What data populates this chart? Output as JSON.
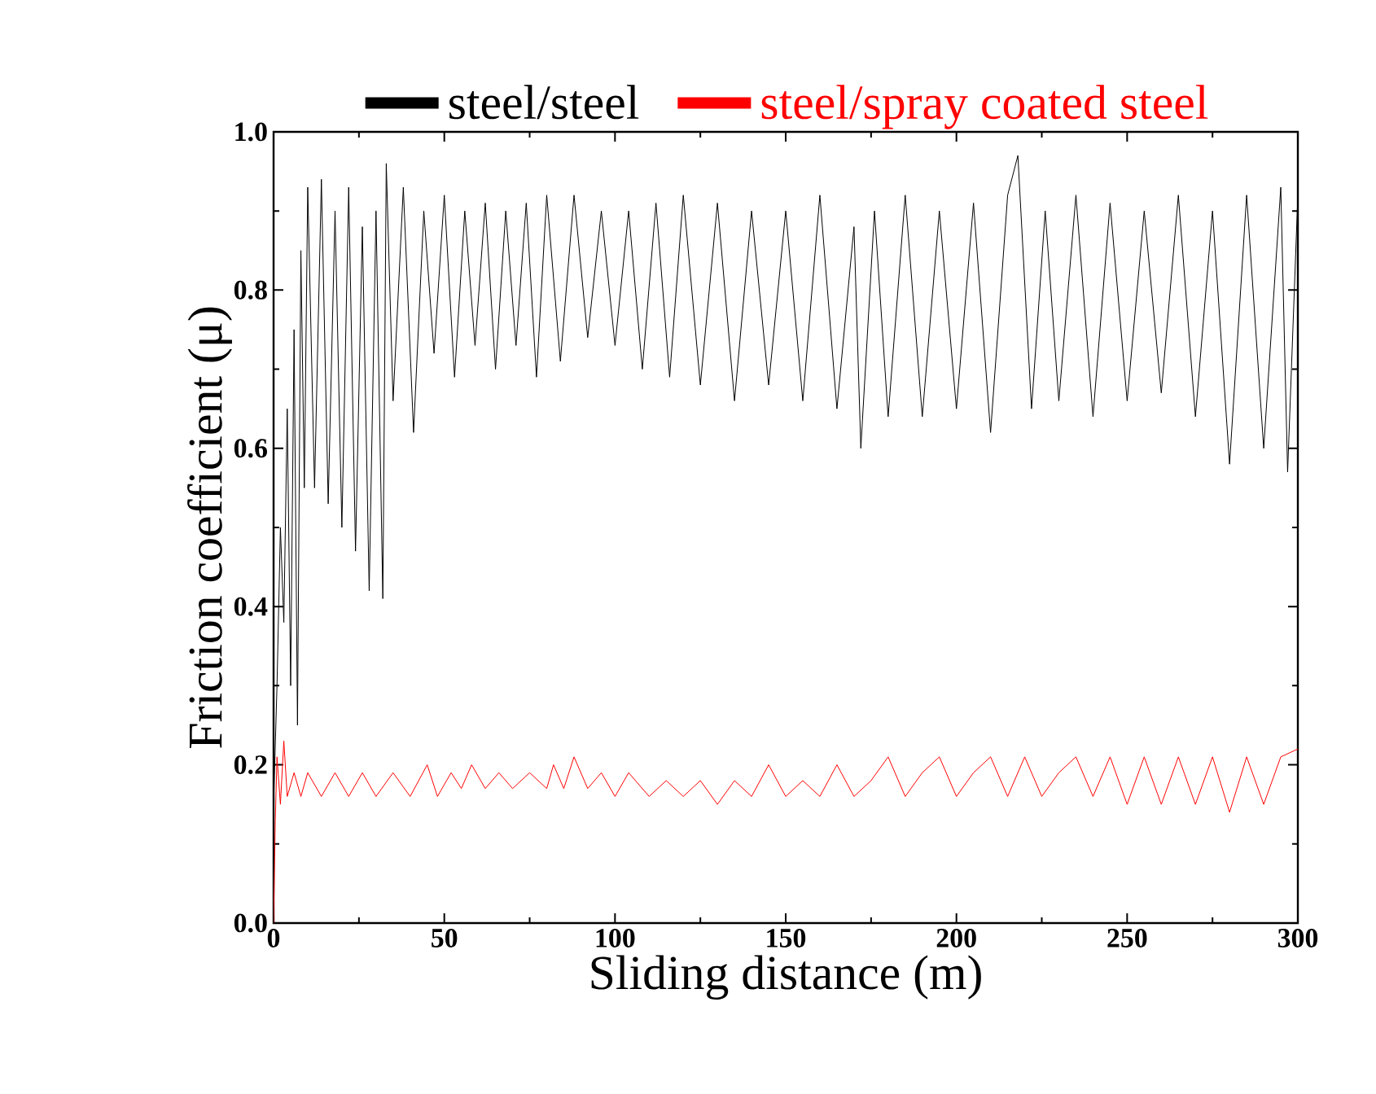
{
  "chart_data": {
    "type": "line",
    "xlabel": "Sliding distance (m)",
    "ylabel": "Friction coefficient (μ)",
    "legend": "top",
    "xlim": [
      0,
      300
    ],
    "ylim": [
      0,
      1.0
    ],
    "xticks": [
      0,
      50,
      100,
      150,
      200,
      250,
      300
    ],
    "yticks": [
      {
        "value": 0,
        "label": "0.0"
      },
      {
        "value": 0.2,
        "label": "0.2"
      },
      {
        "value": 0.4,
        "label": "0.4"
      },
      {
        "value": 0.6,
        "label": "0.6"
      },
      {
        "value": 0.8,
        "label": "0.8"
      },
      {
        "value": 1.0,
        "label": "1.0"
      }
    ],
    "series": [
      {
        "name": "steel/steel",
        "color": "#000000",
        "x": [
          0,
          1,
          2,
          3,
          4,
          5,
          6,
          7,
          8,
          9,
          10,
          12,
          14,
          16,
          18,
          20,
          22,
          24,
          26,
          28,
          30,
          32,
          33,
          35,
          38,
          41,
          44,
          47,
          50,
          53,
          56,
          59,
          62,
          65,
          68,
          71,
          74,
          77,
          80,
          84,
          88,
          92,
          96,
          100,
          104,
          108,
          112,
          116,
          120,
          125,
          130,
          135,
          140,
          145,
          150,
          155,
          160,
          165,
          170,
          172,
          176,
          180,
          185,
          190,
          195,
          200,
          205,
          210,
          215,
          218,
          222,
          226,
          230,
          235,
          240,
          245,
          250,
          255,
          260,
          265,
          270,
          275,
          280,
          285,
          290,
          295,
          297,
          300
        ],
        "values": [
          0.15,
          0.3,
          0.5,
          0.38,
          0.65,
          0.3,
          0.75,
          0.25,
          0.85,
          0.55,
          0.93,
          0.55,
          0.94,
          0.53,
          0.9,
          0.5,
          0.93,
          0.47,
          0.88,
          0.42,
          0.9,
          0.41,
          0.96,
          0.66,
          0.93,
          0.62,
          0.9,
          0.72,
          0.92,
          0.69,
          0.9,
          0.73,
          0.91,
          0.7,
          0.9,
          0.73,
          0.91,
          0.69,
          0.92,
          0.71,
          0.92,
          0.74,
          0.9,
          0.73,
          0.9,
          0.7,
          0.91,
          0.69,
          0.92,
          0.68,
          0.91,
          0.66,
          0.9,
          0.68,
          0.9,
          0.66,
          0.92,
          0.65,
          0.88,
          0.6,
          0.9,
          0.64,
          0.92,
          0.64,
          0.9,
          0.65,
          0.91,
          0.62,
          0.92,
          0.97,
          0.65,
          0.9,
          0.66,
          0.92,
          0.64,
          0.91,
          0.66,
          0.9,
          0.67,
          0.92,
          0.64,
          0.9,
          0.58,
          0.92,
          0.6,
          0.93,
          0.57,
          0.92
        ]
      },
      {
        "name": "steel/spray coated steel",
        "color": "#ff0000",
        "x": [
          0,
          0.5,
          1,
          2,
          3,
          4,
          6,
          8,
          10,
          14,
          18,
          22,
          26,
          30,
          35,
          40,
          45,
          48,
          52,
          55,
          58,
          62,
          66,
          70,
          75,
          80,
          82,
          85,
          88,
          92,
          96,
          100,
          104,
          110,
          115,
          120,
          125,
          130,
          135,
          140,
          145,
          150,
          155,
          160,
          165,
          170,
          175,
          180,
          185,
          190,
          195,
          200,
          205,
          210,
          215,
          220,
          225,
          230,
          235,
          240,
          245,
          250,
          255,
          260,
          265,
          270,
          275,
          280,
          285,
          290,
          295,
          300
        ],
        "values": [
          0.0,
          0.13,
          0.21,
          0.15,
          0.23,
          0.16,
          0.19,
          0.16,
          0.19,
          0.16,
          0.19,
          0.16,
          0.19,
          0.16,
          0.19,
          0.16,
          0.2,
          0.16,
          0.19,
          0.17,
          0.2,
          0.17,
          0.19,
          0.17,
          0.19,
          0.17,
          0.2,
          0.17,
          0.21,
          0.17,
          0.19,
          0.16,
          0.19,
          0.16,
          0.18,
          0.16,
          0.18,
          0.15,
          0.18,
          0.16,
          0.2,
          0.16,
          0.18,
          0.16,
          0.2,
          0.16,
          0.18,
          0.21,
          0.16,
          0.19,
          0.21,
          0.16,
          0.19,
          0.21,
          0.16,
          0.21,
          0.16,
          0.19,
          0.21,
          0.16,
          0.21,
          0.15,
          0.21,
          0.15,
          0.21,
          0.15,
          0.21,
          0.14,
          0.21,
          0.15,
          0.21,
          0.22
        ]
      }
    ]
  }
}
